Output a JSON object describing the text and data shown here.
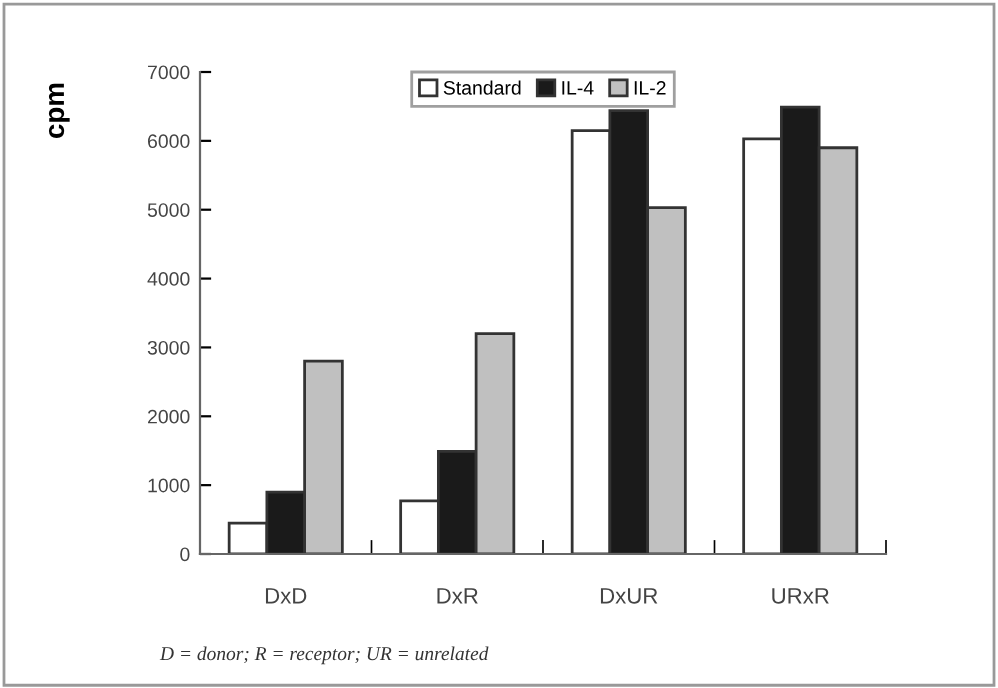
{
  "chart_data": {
    "type": "bar",
    "ylabel": "cpm",
    "categories": [
      "DxD",
      "DxR",
      "DxUR",
      "URxR"
    ],
    "series": [
      {
        "name": "Standard",
        "color": "#ffffff",
        "values": [
          450,
          770,
          6150,
          6030
        ]
      },
      {
        "name": "IL-4",
        "color": "#1a1a1a",
        "values": [
          900,
          1490,
          6440,
          6490
        ]
      },
      {
        "name": "IL-2",
        "color": "#c0c0c0",
        "values": [
          2800,
          3200,
          5030,
          5900
        ]
      }
    ],
    "ylim": [
      0,
      7000
    ],
    "yticks": [
      0,
      1000,
      2000,
      3000,
      4000,
      5000,
      6000,
      7000
    ],
    "grid": false,
    "legend": "top",
    "annotations": [
      "D = donor; R = receptor; UR = unrelated"
    ]
  }
}
